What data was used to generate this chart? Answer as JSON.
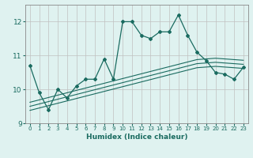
{
  "xlabel": "Humidex (Indice chaleur)",
  "background_color": "#dff2f0",
  "grid_color": "#c0c0c0",
  "line_color": "#1a6b60",
  "x_values": [
    0,
    1,
    2,
    3,
    4,
    5,
    6,
    7,
    8,
    9,
    10,
    11,
    12,
    13,
    14,
    15,
    16,
    17,
    18,
    19,
    20,
    21,
    22,
    23
  ],
  "main_line": [
    10.7,
    9.9,
    9.4,
    10.0,
    9.75,
    10.1,
    10.3,
    10.3,
    10.9,
    10.3,
    12.0,
    12.0,
    11.6,
    11.5,
    11.7,
    11.7,
    12.2,
    11.6,
    11.1,
    10.85,
    10.5,
    10.45,
    10.3,
    10.65
  ],
  "linear1": [
    9.62,
    9.69,
    9.76,
    9.83,
    9.9,
    9.97,
    10.04,
    10.11,
    10.18,
    10.25,
    10.32,
    10.39,
    10.46,
    10.53,
    10.6,
    10.67,
    10.74,
    10.81,
    10.88,
    10.9,
    10.92,
    10.9,
    10.88,
    10.86
  ],
  "linear2": [
    9.5,
    9.57,
    9.64,
    9.71,
    9.78,
    9.85,
    9.92,
    9.99,
    10.06,
    10.13,
    10.2,
    10.27,
    10.34,
    10.41,
    10.48,
    10.55,
    10.62,
    10.69,
    10.76,
    10.78,
    10.8,
    10.78,
    10.76,
    10.74
  ],
  "linear3": [
    9.38,
    9.45,
    9.52,
    9.59,
    9.66,
    9.73,
    9.8,
    9.87,
    9.94,
    10.01,
    10.08,
    10.15,
    10.22,
    10.29,
    10.36,
    10.43,
    10.5,
    10.57,
    10.64,
    10.66,
    10.68,
    10.66,
    10.64,
    10.62
  ],
  "ylim": [
    9.0,
    12.5
  ],
  "yticks": [
    9,
    10,
    11,
    12
  ],
  "xticks": [
    0,
    1,
    2,
    3,
    4,
    5,
    6,
    7,
    8,
    9,
    10,
    11,
    12,
    13,
    14,
    15,
    16,
    17,
    18,
    19,
    20,
    21,
    22,
    23
  ]
}
